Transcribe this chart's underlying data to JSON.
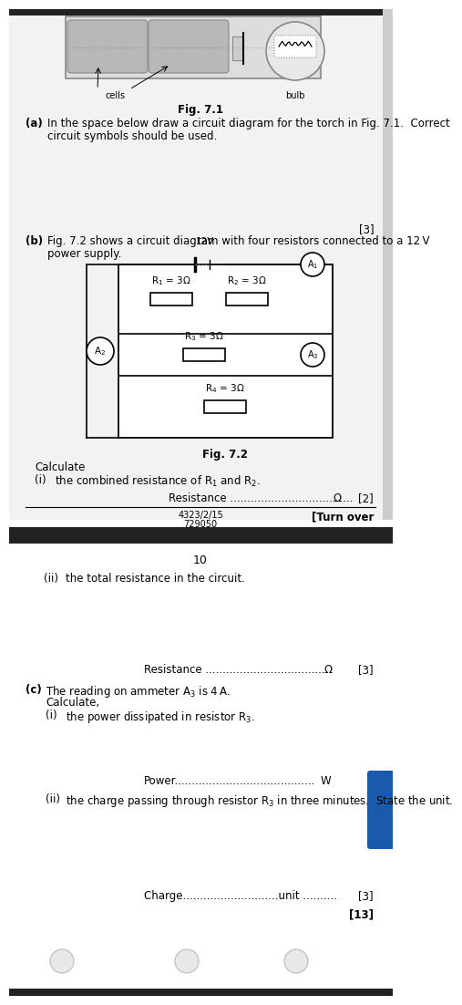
{
  "fig71_title": "Fig. 7.1",
  "fig72_title": "Fig. 7.2",
  "part_a_bold": "(a)",
  "part_a_line1": "In the space below draw a circuit diagram for the torch in Fig. 7.1.  Correct",
  "part_a_line2": "circuit symbols should be used.",
  "mark3_a": "[3]",
  "part_b_bold": "(b)",
  "part_b_line1": "Fig. 7.2 shows a circuit diagram with four resistors connected to a 12 V",
  "part_b_line2": "power supply.",
  "voltage": "12V",
  "r1_label": "R$_1$ = 3Ω",
  "r2_label": "R$_2$ = 3Ω",
  "r3_label": "R$_3$ = 3Ω",
  "r4_label": "R$_4$ = 3Ω",
  "a1_label": "A$_1$",
  "a2_label": "A$_2$",
  "a3_label": "A$_3$",
  "calculate": "Calculate",
  "bi_text": "the combined resistance of R$_1$ and R$_2$.",
  "resistance_dots1": "Resistance ....................................",
  "omega": "Ω",
  "mark2": "[2]",
  "footer_left": "4323/2/15",
  "footer_left2": "729050",
  "footer_right": "[Turn over",
  "page10": "10",
  "bii_text": "the total resistance in the circuit.",
  "resistance_dots2": "Resistance ....................................",
  "mark3_bii": "[3]",
  "part_c_bold": "(c)",
  "part_c_text": "The reading on ammeter A$_3$ is 4 A.",
  "calculate2": "Calculate,",
  "ci_text": "the power dissipated in resistor R$_3$.",
  "power_dots": "Power.........................................",
  "power_W": "W",
  "cii_text": "the charge passing through resistor R$_3$ in three minutes.  State the unit.",
  "charge_dots": "Charge............................unit ..........",
  "mark3_cii": "[3]",
  "mark13": "[13]",
  "bg_gray": "#f0f0f0",
  "bg_white": "#ffffff",
  "dark_bar": "#222222",
  "blue_tab": "#1a5aad",
  "cells_label": "cells",
  "bulb_label": "bulb"
}
